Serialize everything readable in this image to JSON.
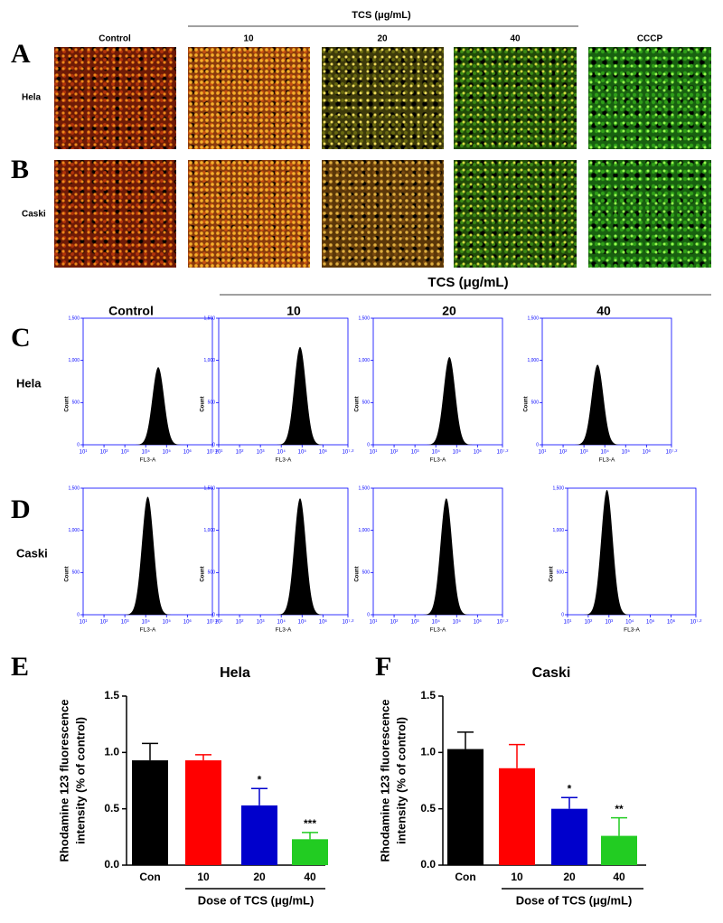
{
  "panels": [
    "A",
    "B",
    "C",
    "D",
    "E",
    "F"
  ],
  "microscopy": {
    "group_label": "TCS (μg/mL)",
    "columns": [
      "Control",
      "10",
      "20",
      "40",
      "CCCP"
    ],
    "rows": [
      "Hela",
      "Caski"
    ]
  },
  "flow": {
    "group_label": "TCS (μg/mL)",
    "columns": [
      "Control",
      "10",
      "20",
      "40"
    ],
    "rows": [
      "Hela",
      "Caski"
    ],
    "y_label": "Count",
    "x_label": "FL3-A",
    "xscale": "log",
    "xlim": [
      10,
      15848932
    ],
    "xticks": [
      {
        "value": 10,
        "label": "10¹"
      },
      {
        "value": 100,
        "label": "10²"
      },
      {
        "value": 1000,
        "label": "10³"
      },
      {
        "value": 10000,
        "label": "10⁴"
      },
      {
        "value": 100000,
        "label": "10⁵"
      },
      {
        "value": 1000000,
        "label": "10⁶"
      },
      {
        "value": 15848932,
        "label": "10⁷·²"
      }
    ],
    "ylim": [
      0,
      1500
    ],
    "yticks": [
      0,
      500,
      {
        "value": 1000,
        "label": "1,000"
      },
      {
        "value": 1500,
        "label": "1,500"
      }
    ],
    "color": "#000000",
    "axis_color": "#0000ff",
    "histograms": [
      [
        {
          "peak": 40000,
          "height": 920
        },
        {
          "peak": 80000,
          "height": 1160
        },
        {
          "peak": 45000,
          "height": 1040
        },
        {
          "peak": 4500,
          "height": 950
        }
      ],
      [
        {
          "peak": 12600,
          "height": 1400
        },
        {
          "peak": 80000,
          "height": 1380
        },
        {
          "peak": 32000,
          "height": 1380
        },
        {
          "peak": 800,
          "height": 1480
        }
      ]
    ]
  },
  "chart_data": [
    {
      "type": "bar",
      "title": "Hela",
      "categories": [
        "Con",
        "10",
        "20",
        "40"
      ],
      "values": [
        0.93,
        0.93,
        0.53,
        0.23
      ],
      "errors": [
        0.15,
        0.05,
        0.15,
        0.06
      ],
      "annotations": [
        null,
        null,
        "*",
        "***"
      ],
      "colors": [
        "#000000",
        "#ff0000",
        "#0000cc",
        "#22cc22"
      ],
      "y_label": [
        "Rhodamine 123 fluorescence",
        "intensity (% of control)"
      ],
      "x_label": "Dose of TCS (μg/mL)",
      "ylim": [
        0,
        1.5
      ],
      "yticks": [
        {
          "value": 0,
          "label": "0.0"
        },
        {
          "value": 0.5,
          "label": "0.5"
        },
        {
          "value": 1,
          "label": "1.0"
        },
        {
          "value": 1.5,
          "label": "1.5"
        }
      ]
    },
    {
      "type": "bar",
      "title": "Caski",
      "categories": [
        "Con",
        "10",
        "20",
        "40"
      ],
      "values": [
        1.03,
        0.86,
        0.5,
        0.26
      ],
      "errors": [
        0.15,
        0.21,
        0.1,
        0.16
      ],
      "annotations": [
        null,
        null,
        "*",
        "**"
      ],
      "colors": [
        "#000000",
        "#ff0000",
        "#0000cc",
        "#22cc22"
      ],
      "y_label": [
        "Rhodamine 123 fluorescence",
        "intensity (% of control)"
      ],
      "x_label": "Dose of TCS (μg/mL)",
      "ylim": [
        0,
        1.5
      ],
      "yticks": [
        {
          "value": 0,
          "label": "0.0"
        },
        {
          "value": 0.5,
          "label": "0.5"
        },
        {
          "value": 1,
          "label": "1.0"
        },
        {
          "value": 1.5,
          "label": "1.5"
        }
      ]
    }
  ]
}
